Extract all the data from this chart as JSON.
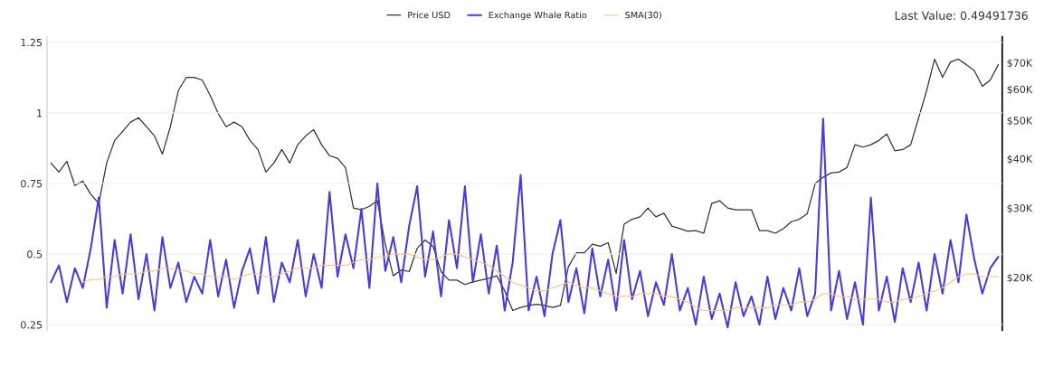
{
  "chart_data": {
    "type": "line",
    "categories": [
      null,
      null,
      null,
      null,
      null,
      null,
      null,
      null,
      null,
      null,
      null,
      null,
      null,
      null,
      null,
      null,
      null,
      null,
      null,
      null,
      null,
      null,
      null,
      null,
      null,
      null,
      null,
      null,
      null,
      null,
      null,
      null,
      null,
      null,
      null,
      null,
      null,
      null,
      null,
      null,
      null,
      null,
      null,
      null,
      null,
      null,
      null,
      null,
      null,
      null,
      null,
      null,
      null,
      null,
      null,
      null,
      null,
      null,
      null,
      null,
      null,
      null,
      null,
      null,
      null,
      null,
      null,
      null,
      null,
      null,
      null,
      null,
      null,
      null,
      null,
      null,
      null,
      null,
      null,
      null,
      null,
      null,
      null,
      null,
      null,
      null,
      null,
      null,
      null,
      null,
      null,
      null,
      null,
      null,
      null,
      null,
      null,
      null,
      null,
      null,
      null,
      null,
      null,
      null,
      null,
      null,
      null,
      null,
      null,
      null,
      null,
      null,
      null,
      null,
      null,
      null,
      null,
      null,
      null,
      null
    ],
    "series": [
      {
        "name": "Price USD",
        "color": "#333333",
        "axis": "y2",
        "values": [
          39000,
          37000,
          39400,
          34200,
          35100,
          32500,
          30800,
          39000,
          44500,
          46900,
          49500,
          50800,
          48200,
          45700,
          41100,
          48200,
          59500,
          64300,
          64300,
          63300,
          57900,
          52100,
          48200,
          49500,
          48200,
          44500,
          42200,
          37000,
          39000,
          42200,
          39000,
          43400,
          45700,
          47400,
          43400,
          40700,
          40100,
          38000,
          30000,
          29700,
          30300,
          31300,
          24300,
          20200,
          20900,
          20700,
          23700,
          24900,
          24000,
          20700,
          19700,
          19700,
          19200,
          19500,
          19700,
          19900,
          20200,
          18500,
          16500,
          16800,
          17000,
          17100,
          17000,
          16800,
          17000,
          21300,
          23100,
          23100,
          24300,
          24000,
          24500,
          20500,
          27300,
          28100,
          28500,
          30000,
          28500,
          29100,
          27000,
          26600,
          26200,
          26300,
          25900,
          30800,
          31300,
          30000,
          29700,
          29700,
          29700,
          26300,
          26300,
          25900,
          26600,
          27700,
          28100,
          29000,
          34600,
          35900,
          36800,
          37000,
          38000,
          43400,
          42800,
          43400,
          44500,
          46200,
          41900,
          42200,
          43400,
          50800,
          59500,
          71500,
          64300,
          70300,
          71500,
          69200,
          66800,
          61000,
          63300,
          69200
        ]
      },
      {
        "name": "Exchange Whale Ratio",
        "color": "#4b3bd8",
        "values": [
          0.4,
          0.46,
          0.33,
          0.45,
          0.38,
          0.52,
          0.7,
          0.31,
          0.55,
          0.36,
          0.57,
          0.34,
          0.5,
          0.3,
          0.56,
          0.38,
          0.47,
          0.33,
          0.42,
          0.36,
          0.55,
          0.35,
          0.48,
          0.31,
          0.44,
          0.52,
          0.36,
          0.56,
          0.33,
          0.47,
          0.4,
          0.55,
          0.35,
          0.5,
          0.38,
          0.72,
          0.42,
          0.57,
          0.45,
          0.66,
          0.38,
          0.75,
          0.44,
          0.56,
          0.4,
          0.6,
          0.74,
          0.42,
          0.58,
          0.35,
          0.62,
          0.45,
          0.74,
          0.4,
          0.57,
          0.36,
          0.53,
          0.3,
          0.47,
          0.78,
          0.3,
          0.42,
          0.28,
          0.5,
          0.62,
          0.33,
          0.45,
          0.29,
          0.52,
          0.35,
          0.48,
          0.3,
          0.55,
          0.34,
          0.44,
          0.28,
          0.4,
          0.32,
          0.5,
          0.3,
          0.38,
          0.25,
          0.42,
          0.27,
          0.36,
          0.24,
          0.4,
          0.28,
          0.35,
          0.25,
          0.42,
          0.27,
          0.38,
          0.3,
          0.45,
          0.28,
          0.36,
          0.98,
          0.3,
          0.44,
          0.27,
          0.4,
          0.25,
          0.7,
          0.3,
          0.42,
          0.26,
          0.45,
          0.33,
          0.47,
          0.3,
          0.5,
          0.36,
          0.55,
          0.4,
          0.64,
          0.48,
          0.36,
          0.45,
          0.49
        ]
      },
      {
        "name": "SMA(30)",
        "color": "#f2c77a",
        "values": [
          null,
          null,
          null,
          null,
          0.4,
          0.41,
          0.41,
          0.42,
          0.42,
          0.43,
          0.43,
          0.43,
          0.44,
          0.44,
          0.45,
          0.45,
          0.44,
          0.44,
          0.43,
          0.43,
          0.42,
          0.42,
          0.42,
          0.41,
          0.42,
          0.43,
          0.43,
          0.42,
          0.42,
          0.43,
          0.44,
          0.45,
          0.45,
          0.45,
          0.46,
          0.46,
          0.46,
          0.46,
          0.47,
          0.48,
          0.48,
          0.49,
          0.49,
          0.5,
          0.5,
          0.5,
          0.49,
          0.48,
          0.48,
          0.49,
          0.5,
          0.5,
          0.49,
          0.48,
          0.47,
          0.46,
          0.44,
          0.42,
          0.4,
          0.39,
          0.38,
          0.37,
          0.37,
          0.38,
          0.39,
          0.4,
          0.39,
          0.38,
          0.38,
          0.37,
          0.36,
          0.35,
          0.35,
          0.35,
          0.36,
          0.36,
          0.36,
          0.35,
          0.35,
          0.34,
          0.33,
          0.31,
          0.3,
          0.3,
          0.3,
          0.3,
          0.31,
          0.31,
          0.31,
          0.31,
          0.31,
          0.32,
          0.32,
          0.32,
          0.33,
          0.33,
          0.34,
          0.36,
          0.36,
          0.35,
          0.35,
          0.34,
          0.34,
          0.34,
          0.34,
          0.33,
          0.33,
          0.34,
          0.34,
          0.35,
          0.36,
          0.37,
          0.38,
          0.4,
          0.42,
          0.43,
          0.43,
          0.42,
          0.42,
          0.42
        ]
      }
    ],
    "ylim": [
      0.23,
      1.27
    ],
    "yticks": [
      0.25,
      0.5,
      0.75,
      1,
      1.25
    ],
    "y2lim": [
      14700,
      81500
    ],
    "log": "y2",
    "y2ticks": [
      {
        "value": 20000,
        "label": "$20K"
      },
      {
        "value": 30000,
        "label": "$30K"
      },
      {
        "value": 40000,
        "label": "$40K"
      },
      {
        "value": 50000,
        "label": "$50K"
      },
      {
        "value": 60000,
        "label": "$60K"
      },
      {
        "value": 70000,
        "label": "$70K"
      }
    ],
    "grid": "y",
    "legend": "top",
    "tick_labels": "y",
    "annotations": [
      "Last Value: 0.49491736"
    ]
  }
}
